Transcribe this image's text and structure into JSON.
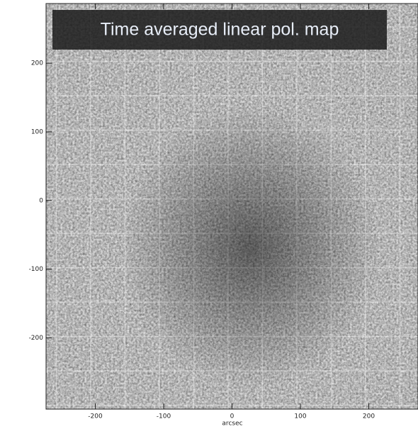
{
  "chart_data": {
    "type": "image",
    "title": "Time averaged linear pol. map",
    "xlabel": "arcsec",
    "xlim": [
      -272,
      272
    ],
    "ylim": [
      -304,
      287
    ],
    "xticks": [
      -200,
      -100,
      0,
      100,
      200
    ],
    "yticks": [
      -200,
      -100,
      0,
      100,
      200
    ]
  }
}
